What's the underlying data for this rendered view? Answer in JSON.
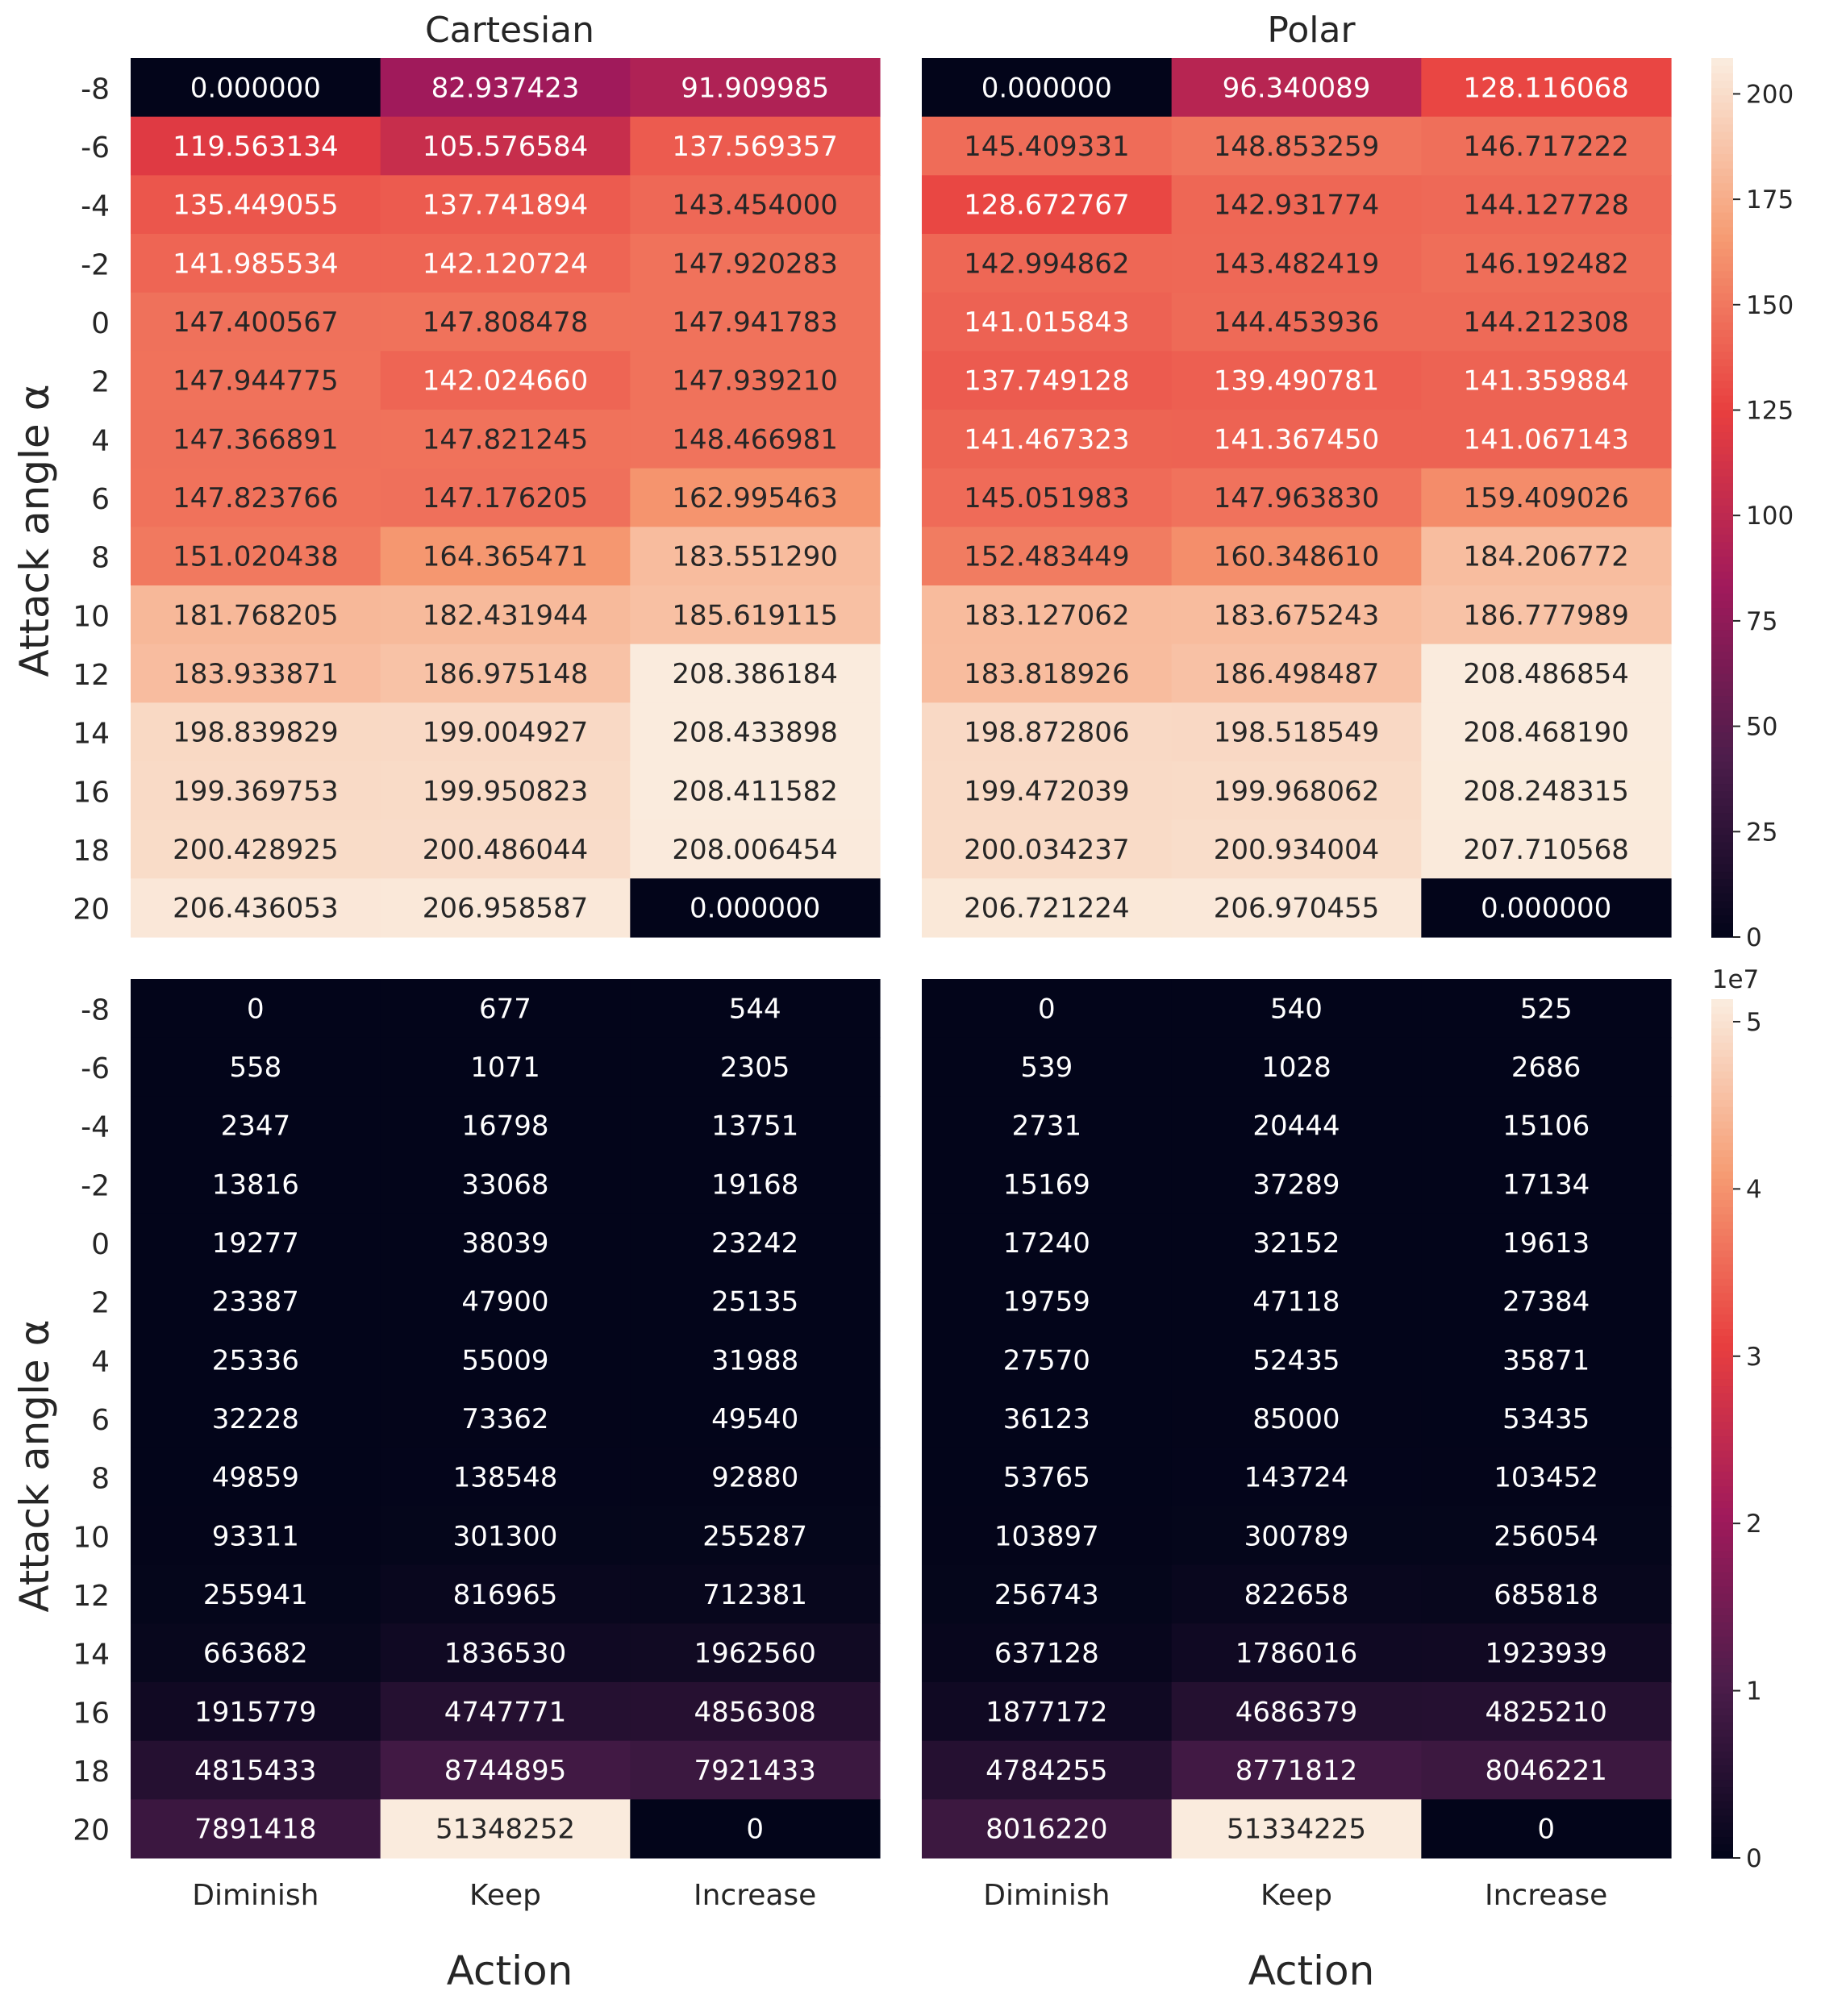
{
  "figure": {
    "rows": [
      "-8",
      "-6",
      "-4",
      "-2",
      "0",
      "2",
      "4",
      "6",
      "8",
      "10",
      "12",
      "14",
      "16",
      "18",
      "20"
    ],
    "actions": [
      "Diminish",
      "Keep",
      "Increase"
    ],
    "ylabel": "Attack angle α",
    "xlabel": "Action",
    "colormap": "rocket",
    "colormap_stops": [
      "#03051a",
      "#4c1d4b",
      "#a11a5b",
      "#e83f3f",
      "#f69c73",
      "#faebdd"
    ]
  },
  "chart_data": [
    {
      "type": "heatmap",
      "panel": "top-left",
      "title": "Cartesian",
      "ylabel": "Attack angle α",
      "xlabel": "",
      "x": [
        "Diminish",
        "Keep",
        "Increase"
      ],
      "y": [
        "-8",
        "-6",
        "-4",
        "-2",
        "0",
        "2",
        "4",
        "6",
        "8",
        "10",
        "12",
        "14",
        "16",
        "18",
        "20"
      ],
      "values": [
        [
          0.0,
          82.937423,
          91.909985
        ],
        [
          119.563134,
          105.576584,
          137.569357
        ],
        [
          135.449055,
          137.741894,
          143.454
        ],
        [
          141.985534,
          142.120724,
          147.920283
        ],
        [
          147.400567,
          147.808478,
          147.941783
        ],
        [
          147.944775,
          142.02466,
          147.93921
        ],
        [
          147.366891,
          147.821245,
          148.466981
        ],
        [
          147.823766,
          147.176205,
          162.995463
        ],
        [
          151.020438,
          164.365471,
          183.55129
        ],
        [
          181.768205,
          182.431944,
          185.619115
        ],
        [
          183.933871,
          186.975148,
          208.386184
        ],
        [
          198.839829,
          199.004927,
          208.433898
        ],
        [
          199.369753,
          199.950823,
          208.411582
        ],
        [
          200.428925,
          200.486044,
          208.006454
        ],
        [
          206.436053,
          206.958587,
          0.0
        ]
      ],
      "labels": [
        [
          "0.000000",
          "82.937423",
          "91.909985"
        ],
        [
          "119.563134",
          "105.576584",
          "137.569357"
        ],
        [
          "135.449055",
          "137.741894",
          "143.454000"
        ],
        [
          "141.985534",
          "142.120724",
          "147.920283"
        ],
        [
          "147.400567",
          "147.808478",
          "147.941783"
        ],
        [
          "147.944775",
          "142.024660",
          "147.939210"
        ],
        [
          "147.366891",
          "147.821245",
          "148.466981"
        ],
        [
          "147.823766",
          "147.176205",
          "162.995463"
        ],
        [
          "151.020438",
          "164.365471",
          "183.551290"
        ],
        [
          "181.768205",
          "182.431944",
          "185.619115"
        ],
        [
          "183.933871",
          "186.975148",
          "208.386184"
        ],
        [
          "198.839829",
          "199.004927",
          "208.433898"
        ],
        [
          "199.369753",
          "199.950823",
          "208.411582"
        ],
        [
          "200.428925",
          "200.486044",
          "208.006454"
        ],
        [
          "206.436053",
          "206.958587",
          "0.000000"
        ]
      ],
      "vmin": 0,
      "vmax": 208.5
    },
    {
      "type": "heatmap",
      "panel": "top-right",
      "title": "Polar",
      "xlabel": "",
      "x": [
        "Diminish",
        "Keep",
        "Increase"
      ],
      "y": [
        "-8",
        "-6",
        "-4",
        "-2",
        "0",
        "2",
        "4",
        "6",
        "8",
        "10",
        "12",
        "14",
        "16",
        "18",
        "20"
      ],
      "values": [
        [
          0.0,
          96.340089,
          128.116068
        ],
        [
          145.409331,
          148.853259,
          146.717222
        ],
        [
          128.672767,
          142.931774,
          144.127728
        ],
        [
          142.994862,
          143.482419,
          146.192482
        ],
        [
          141.015843,
          144.453936,
          144.212308
        ],
        [
          137.749128,
          139.490781,
          141.359884
        ],
        [
          141.467323,
          141.36745,
          141.067143
        ],
        [
          145.051983,
          147.96383,
          159.409026
        ],
        [
          152.483449,
          160.34861,
          184.206772
        ],
        [
          183.127062,
          183.675243,
          186.777989
        ],
        [
          183.818926,
          186.498487,
          208.486854
        ],
        [
          198.872806,
          198.518549,
          208.46819
        ],
        [
          199.472039,
          199.968062,
          208.248315
        ],
        [
          200.034237,
          200.934004,
          207.710568
        ],
        [
          206.721224,
          206.970455,
          0.0
        ]
      ],
      "labels": [
        [
          "0.000000",
          "96.340089",
          "128.116068"
        ],
        [
          "145.409331",
          "148.853259",
          "146.717222"
        ],
        [
          "128.672767",
          "142.931774",
          "144.127728"
        ],
        [
          "142.994862",
          "143.482419",
          "146.192482"
        ],
        [
          "141.015843",
          "144.453936",
          "144.212308"
        ],
        [
          "137.749128",
          "139.490781",
          "141.359884"
        ],
        [
          "141.467323",
          "141.367450",
          "141.067143"
        ],
        [
          "145.051983",
          "147.963830",
          "159.409026"
        ],
        [
          "152.483449",
          "160.348610",
          "184.206772"
        ],
        [
          "183.127062",
          "183.675243",
          "186.777989"
        ],
        [
          "183.818926",
          "186.498487",
          "208.486854"
        ],
        [
          "198.872806",
          "198.518549",
          "208.468190"
        ],
        [
          "199.472039",
          "199.968062",
          "208.248315"
        ],
        [
          "200.034237",
          "200.934004",
          "207.710568"
        ],
        [
          "206.721224",
          "206.970455",
          "0.000000"
        ]
      ],
      "vmin": 0,
      "vmax": 208.5,
      "colorbar": {
        "ticks": [
          0,
          25,
          50,
          75,
          100,
          125,
          150,
          175,
          200
        ],
        "tick_labels": [
          "0",
          "25",
          "50",
          "75",
          "100",
          "125",
          "150",
          "175",
          "200"
        ]
      }
    },
    {
      "type": "heatmap",
      "panel": "bottom-left",
      "title": "",
      "ylabel": "Attack angle α",
      "xlabel": "Action",
      "x": [
        "Diminish",
        "Keep",
        "Increase"
      ],
      "y": [
        "-8",
        "-6",
        "-4",
        "-2",
        "0",
        "2",
        "4",
        "6",
        "8",
        "10",
        "12",
        "14",
        "16",
        "18",
        "20"
      ],
      "values": [
        [
          0,
          677,
          544
        ],
        [
          558,
          1071,
          2305
        ],
        [
          2347,
          16798,
          13751
        ],
        [
          13816,
          33068,
          19168
        ],
        [
          19277,
          38039,
          23242
        ],
        [
          23387,
          47900,
          25135
        ],
        [
          25336,
          55009,
          31988
        ],
        [
          32228,
          73362,
          49540
        ],
        [
          49859,
          138548,
          92880
        ],
        [
          93311,
          301300,
          255287
        ],
        [
          255941,
          816965,
          712381
        ],
        [
          663682,
          1836530,
          1962560
        ],
        [
          1915779,
          4747771,
          4856308
        ],
        [
          4815433,
          8744895,
          7921433
        ],
        [
          7891418,
          51348252,
          0
        ]
      ],
      "labels": [
        [
          "0",
          "677",
          "544"
        ],
        [
          "558",
          "1071",
          "2305"
        ],
        [
          "2347",
          "16798",
          "13751"
        ],
        [
          "13816",
          "33068",
          "19168"
        ],
        [
          "19277",
          "38039",
          "23242"
        ],
        [
          "23387",
          "47900",
          "25135"
        ],
        [
          "25336",
          "55009",
          "31988"
        ],
        [
          "32228",
          "73362",
          "49540"
        ],
        [
          "49859",
          "138548",
          "92880"
        ],
        [
          "93311",
          "301300",
          "255287"
        ],
        [
          "255941",
          "816965",
          "712381"
        ],
        [
          "663682",
          "1836530",
          "1962560"
        ],
        [
          "1915779",
          "4747771",
          "4856308"
        ],
        [
          "4815433",
          "8744895",
          "7921433"
        ],
        [
          "7891418",
          "51348252",
          "0"
        ]
      ],
      "vmin": 0,
      "vmax": 51348252
    },
    {
      "type": "heatmap",
      "panel": "bottom-right",
      "title": "",
      "xlabel": "Action",
      "x": [
        "Diminish",
        "Keep",
        "Increase"
      ],
      "y": [
        "-8",
        "-6",
        "-4",
        "-2",
        "0",
        "2",
        "4",
        "6",
        "8",
        "10",
        "12",
        "14",
        "16",
        "18",
        "20"
      ],
      "values": [
        [
          0,
          540,
          525
        ],
        [
          539,
          1028,
          2686
        ],
        [
          2731,
          20444,
          15106
        ],
        [
          15169,
          37289,
          17134
        ],
        [
          17240,
          32152,
          19613
        ],
        [
          19759,
          47118,
          27384
        ],
        [
          27570,
          52435,
          35871
        ],
        [
          36123,
          85000,
          53435
        ],
        [
          53765,
          143724,
          103452
        ],
        [
          103897,
          300789,
          256054
        ],
        [
          256743,
          822658,
          685818
        ],
        [
          637128,
          1786016,
          1923939
        ],
        [
          1877172,
          4686379,
          4825210
        ],
        [
          4784255,
          8771812,
          8046221
        ],
        [
          8016220,
          51334225,
          0
        ]
      ],
      "labels": [
        [
          "0",
          "540",
          "525"
        ],
        [
          "539",
          "1028",
          "2686"
        ],
        [
          "2731",
          "20444",
          "15106"
        ],
        [
          "15169",
          "37289",
          "17134"
        ],
        [
          "17240",
          "32152",
          "19613"
        ],
        [
          "19759",
          "47118",
          "27384"
        ],
        [
          "27570",
          "52435",
          "35871"
        ],
        [
          "36123",
          "85000",
          "53435"
        ],
        [
          "53765",
          "143724",
          "103452"
        ],
        [
          "103897",
          "300789",
          "256054"
        ],
        [
          "256743",
          "822658",
          "685818"
        ],
        [
          "637128",
          "1786016",
          "1923939"
        ],
        [
          "1877172",
          "4686379",
          "4825210"
        ],
        [
          "4784255",
          "8771812",
          "8046221"
        ],
        [
          "8016220",
          "51334225",
          "0"
        ]
      ],
      "vmin": 0,
      "vmax": 51348252,
      "colorbar": {
        "ticks": [
          0,
          10000000,
          20000000,
          30000000,
          40000000,
          50000000
        ],
        "tick_labels": [
          "0",
          "1",
          "2",
          "3",
          "4",
          "5"
        ],
        "offset_label": "1e7"
      }
    }
  ]
}
